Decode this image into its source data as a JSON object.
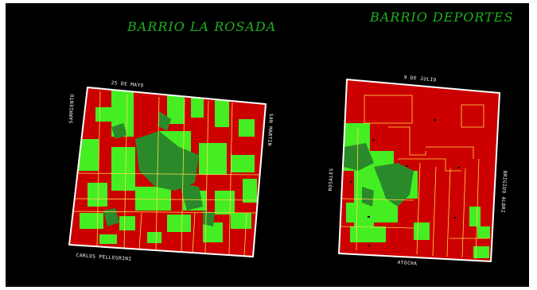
{
  "maps": {
    "rosada": {
      "title": "BARRIO LA ROSADA",
      "streets": {
        "top": "25 DE MAYO",
        "left": "SARMIENTO",
        "right": "SAN MARTIN",
        "bottom": "CARLOS PELLEGRINI"
      }
    },
    "deportes": {
      "title": "BARRIO DEPORTES",
      "streets": {
        "top": "9 DE JULIO",
        "left": "ROSALES",
        "right": "BRIGIDO ALBRI",
        "bottom": "ATOCHA"
      }
    }
  },
  "colors": {
    "background": "#000000",
    "built": "#cc0000",
    "green_bright": "#44ee22",
    "green_dark": "#2a8a2a",
    "parcel_lines": "#ffd84a",
    "boundary": "#ffffff",
    "title": "#1fb01f"
  }
}
